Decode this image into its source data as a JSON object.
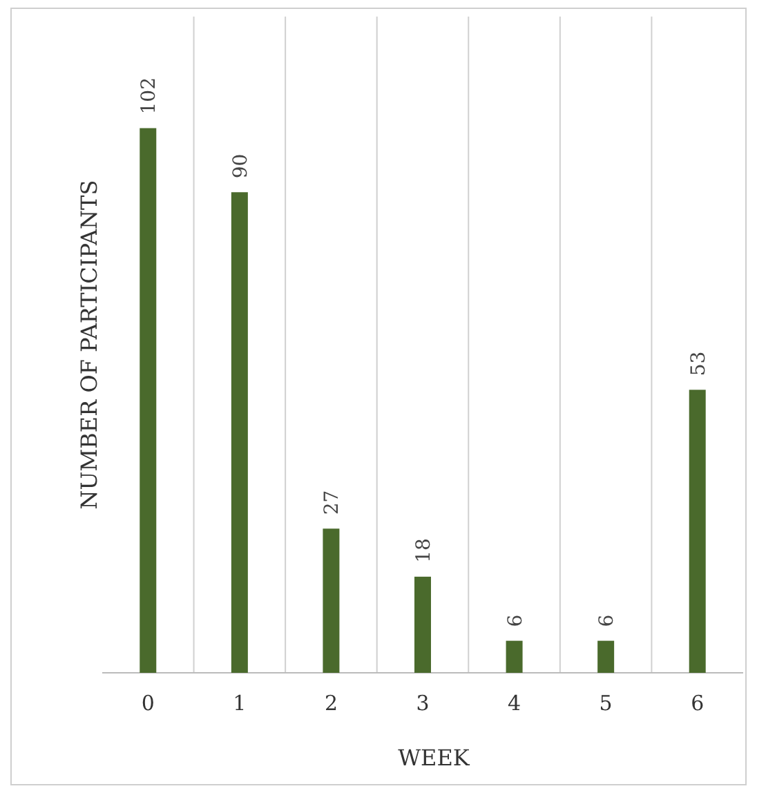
{
  "chart_data": {
    "type": "bar",
    "xlabel": "WEEK",
    "ylabel": "NUMBER OF PARTICIPANTS",
    "categories": [
      "0",
      "1",
      "2",
      "3",
      "4",
      "5",
      "6"
    ],
    "values": [
      102,
      90,
      27,
      18,
      6,
      6,
      53
    ],
    "color": "#4a6a2c",
    "data_labels": true,
    "grid": "x"
  }
}
